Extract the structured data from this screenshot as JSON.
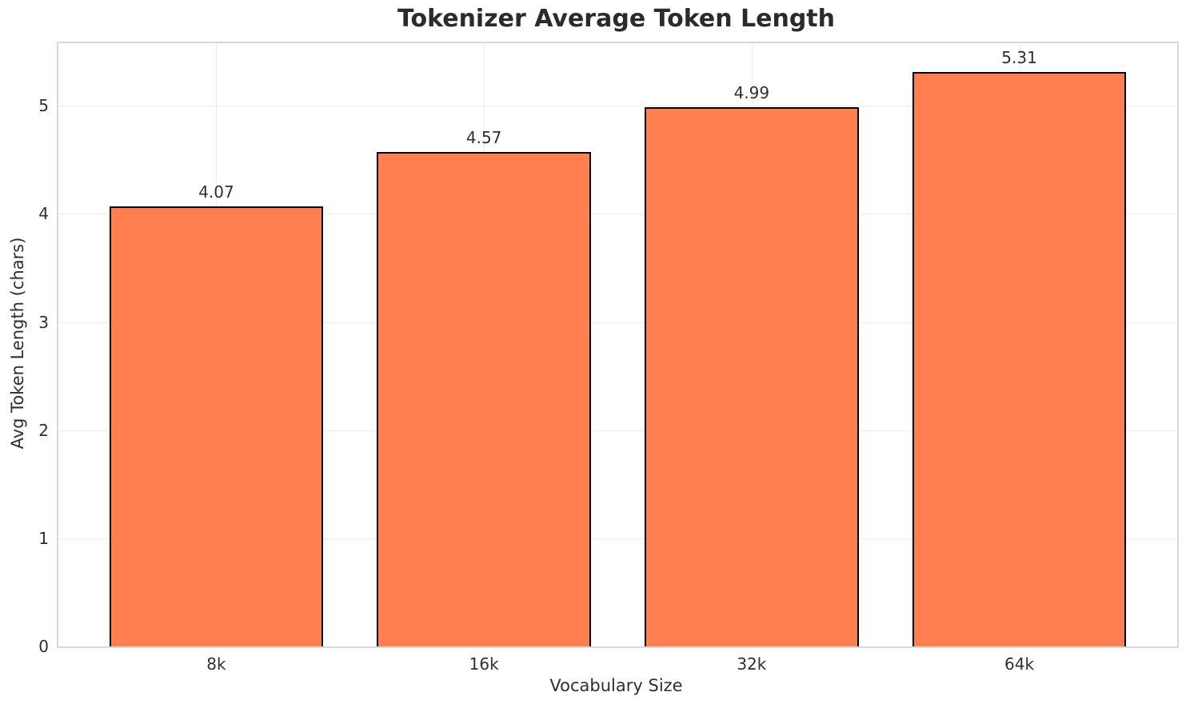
{
  "title": "Tokenizer Average Token Length",
  "chart_data": {
    "type": "bar",
    "categories": [
      "8k",
      "16k",
      "32k",
      "64k"
    ],
    "values": [
      4.07,
      4.57,
      4.99,
      5.31
    ],
    "value_labels": [
      "4.07",
      "4.57",
      "4.99",
      "5.31"
    ],
    "title": "Tokenizer Average Token Length",
    "xlabel": "Vocabulary Size",
    "ylabel": "Avg Token Length (chars)",
    "ylim": [
      0,
      5.58
    ],
    "yticks": [
      0,
      1,
      2,
      3,
      4,
      5
    ],
    "ytick_labels": [
      "0",
      "1",
      "2",
      "3",
      "4",
      "5"
    ],
    "grid": true,
    "legend": "none",
    "bar_color": "#FF7F50",
    "bar_edge_color": "#000000",
    "grid_color": "#ececec",
    "spine_color": "#d9d9d9",
    "text_color": "#2f2f2f"
  }
}
